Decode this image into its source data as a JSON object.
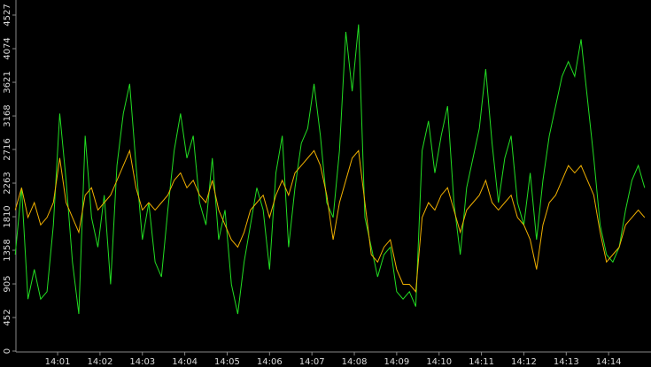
{
  "chart_data": {
    "type": "line",
    "x": [
      0,
      0.15,
      0.3,
      0.45,
      0.6,
      0.75,
      0.9,
      1.05,
      1.2,
      1.35,
      1.5,
      1.65,
      1.8,
      1.95,
      2.1,
      2.25,
      2.4,
      2.55,
      2.7,
      2.85,
      3.0,
      3.15,
      3.3,
      3.45,
      3.6,
      3.75,
      3.9,
      4.05,
      4.2,
      4.35,
      4.5,
      4.65,
      4.8,
      4.95,
      5.1,
      5.25,
      5.4,
      5.55,
      5.7,
      5.85,
      6.0,
      6.15,
      6.3,
      6.45,
      6.6,
      6.75,
      6.9,
      7.05,
      7.2,
      7.35,
      7.5,
      7.65,
      7.8,
      7.95,
      8.1,
      8.25,
      8.4,
      8.55,
      8.7,
      8.85,
      9.0,
      9.15,
      9.3,
      9.45,
      9.6,
      9.75,
      9.9,
      10.05,
      10.2,
      10.35,
      10.5,
      10.65,
      10.8,
      10.95,
      11.1,
      11.25,
      11.4,
      11.55,
      11.7,
      11.85,
      12.0,
      12.15,
      12.3,
      12.45,
      12.6,
      12.75,
      12.9,
      13.05,
      13.2,
      13.35,
      13.5,
      13.65,
      13.8,
      13.95,
      14.1,
      14.25,
      14.4,
      14.55,
      14.7,
      14.85
    ],
    "series": [
      {
        "color": "#22dd22",
        "values": [
          1300,
          2200,
          700,
          1100,
          700,
          800,
          1700,
          3200,
          2300,
          1200,
          500,
          2900,
          1800,
          1400,
          2100,
          900,
          2500,
          3200,
          3600,
          2500,
          1500,
          2000,
          1200,
          1000,
          1900,
          2700,
          3200,
          2600,
          2900,
          2000,
          1700,
          2600,
          1500,
          1900,
          900,
          500,
          1200,
          1700,
          2200,
          1900,
          1100,
          2400,
          2900,
          1400,
          2200,
          2800,
          3000,
          3600,
          2900,
          2000,
          1800,
          2700,
          4300,
          3500,
          4400,
          1800,
          1400,
          1000,
          1300,
          1400,
          800,
          700,
          800,
          600,
          2700,
          3100,
          2400,
          2900,
          3300,
          2000,
          1300,
          2200,
          2600,
          3000,
          3800,
          2800,
          2000,
          2600,
          2900,
          2000,
          1700,
          2400,
          1500,
          2300,
          2900,
          3300,
          3700,
          3900,
          3700,
          4200,
          3400,
          2600,
          1700,
          1300,
          1200,
          1400,
          1900,
          2300,
          2500,
          2200
        ]
      },
      {
        "color": "#f0b000",
        "values": [
          1900,
          2200,
          1800,
          2000,
          1700,
          1800,
          2000,
          2600,
          2000,
          1800,
          1600,
          2100,
          2200,
          1900,
          2000,
          2100,
          2300,
          2500,
          2700,
          2200,
          1900,
          2000,
          1900,
          2000,
          2100,
          2300,
          2400,
          2200,
          2300,
          2100,
          2000,
          2300,
          1900,
          1700,
          1500,
          1400,
          1600,
          1900,
          2000,
          2100,
          1800,
          2100,
          2300,
          2100,
          2400,
          2500,
          2600,
          2700,
          2500,
          2100,
          1500,
          2000,
          2300,
          2600,
          2700,
          2000,
          1300,
          1200,
          1400,
          1500,
          1100,
          900,
          900,
          800,
          1800,
          2000,
          1900,
          2100,
          2200,
          1900,
          1600,
          1900,
          2000,
          2100,
          2300,
          2000,
          1900,
          2000,
          2100,
          1800,
          1700,
          1500,
          1100,
          1700,
          2000,
          2100,
          2300,
          2500,
          2400,
          2500,
          2300,
          2100,
          1600,
          1200,
          1300,
          1400,
          1700,
          1800,
          1900,
          1800
        ]
      }
    ],
    "xlim": [
      0,
      15
    ],
    "xticks": [
      {
        "value": 1,
        "label": "14:01"
      },
      {
        "value": 2,
        "label": "14:02"
      },
      {
        "value": 3,
        "label": "14:03"
      },
      {
        "value": 4,
        "label": "14:04"
      },
      {
        "value": 5,
        "label": "14:05"
      },
      {
        "value": 6,
        "label": "14:06"
      },
      {
        "value": 7,
        "label": "14:07"
      },
      {
        "value": 8,
        "label": "14:08"
      },
      {
        "value": 9,
        "label": "14:09"
      },
      {
        "value": 10,
        "label": "14:10"
      },
      {
        "value": 11,
        "label": "14:11"
      },
      {
        "value": 12,
        "label": "14:12"
      },
      {
        "value": 13,
        "label": "14:13"
      },
      {
        "value": 14,
        "label": "14:14"
      }
    ],
    "ylim": [
      0,
      4527
    ],
    "yticks": [
      0,
      452,
      905,
      1358,
      1810,
      2263,
      2716,
      3168,
      3621,
      4074,
      4527
    ]
  }
}
